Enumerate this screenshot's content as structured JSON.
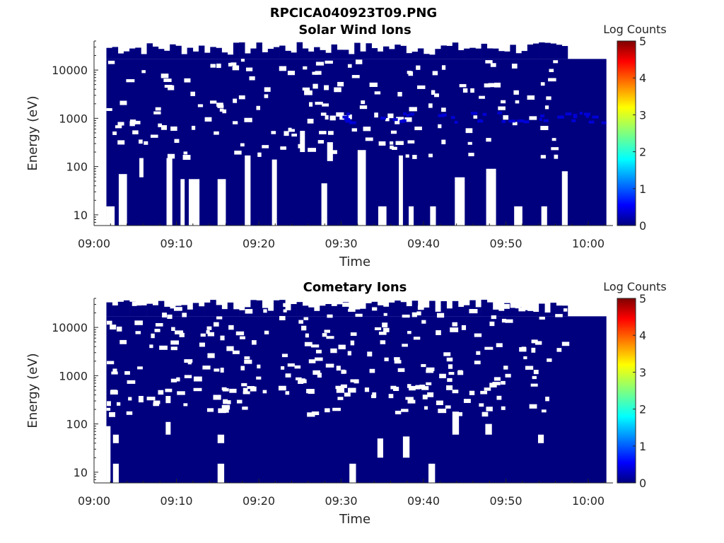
{
  "figure_title": "RPCICA040923T09.PNG",
  "colors": {
    "background": "#00007f",
    "gap": "#ffffff",
    "colormap": [
      "#00007f",
      "#0000ff",
      "#00ffff",
      "#ffff00",
      "#ff0000",
      "#7f0000"
    ]
  },
  "chart_data": [
    {
      "type": "heatmap",
      "title": "Solar Wind Ions",
      "xlabel": "Time",
      "ylabel": "Energy (eV)",
      "colorbar_label": "Log Counts",
      "colorbar_ticks": [
        "0",
        "1",
        "2",
        "3",
        "4",
        "5"
      ],
      "clim": [
        0,
        5
      ],
      "xlim_minutes": [
        0,
        63
      ],
      "ylim": [
        6,
        40000
      ],
      "yscale": "log",
      "x_ticks": [
        "09:00",
        "09:10",
        "09:20",
        "09:30",
        "09:40",
        "09:50",
        "10:00"
      ],
      "y_ticks": [
        "10",
        "100",
        "1000",
        "10000"
      ],
      "data_extent_minutes": [
        1.5,
        62.2
      ],
      "max_energy_eV": 17000,
      "typical_log_counts": 0,
      "enhanced_band": {
        "energy_eV": [
          800,
          1300
        ],
        "log_counts": 0.6
      },
      "gaps": [
        {
          "t": [
            1.5,
            2.5
          ],
          "e": [
            6,
            15
          ]
        },
        {
          "t": [
            3,
            4
          ],
          "e": [
            6,
            70
          ]
        },
        {
          "t": [
            5.5,
            6
          ],
          "e": [
            60,
            150
          ]
        },
        {
          "t": [
            8.8,
            9.5
          ],
          "e": [
            6,
            150
          ]
        },
        {
          "t": [
            10.5,
            11
          ],
          "e": [
            6,
            55
          ]
        },
        {
          "t": [
            11.5,
            12.8
          ],
          "e": [
            6,
            55
          ]
        },
        {
          "t": [
            15,
            16
          ],
          "e": [
            6,
            55
          ]
        },
        {
          "t": [
            18.3,
            19
          ],
          "e": [
            6,
            170
          ]
        },
        {
          "t": [
            21.6,
            22.2
          ],
          "e": [
            6,
            140
          ]
        },
        {
          "t": [
            25,
            25.6
          ],
          "e": [
            200,
            550
          ]
        },
        {
          "t": [
            27.6,
            28.3
          ],
          "e": [
            6,
            45
          ]
        },
        {
          "t": [
            28.3,
            29
          ],
          "e": [
            130,
            320
          ]
        },
        {
          "t": [
            32,
            33
          ],
          "e": [
            6,
            220
          ]
        },
        {
          "t": [
            34.5,
            35.5
          ],
          "e": [
            6,
            15
          ]
        },
        {
          "t": [
            37,
            37.5
          ],
          "e": [
            6,
            170
          ]
        },
        {
          "t": [
            38.2,
            38.8
          ],
          "e": [
            6,
            15
          ]
        },
        {
          "t": [
            40.8,
            41.5
          ],
          "e": [
            6,
            15
          ]
        },
        {
          "t": [
            43.8,
            45
          ],
          "e": [
            6,
            60
          ]
        },
        {
          "t": [
            47.6,
            48.8
          ],
          "e": [
            6,
            90
          ]
        },
        {
          "t": [
            51,
            52
          ],
          "e": [
            6,
            15
          ]
        },
        {
          "t": [
            54.3,
            55
          ],
          "e": [
            6,
            15
          ]
        },
        {
          "t": [
            56.8,
            57.5
          ],
          "e": [
            6,
            80
          ]
        }
      ]
    },
    {
      "type": "heatmap",
      "title": "Cometary Ions",
      "xlabel": "Time",
      "ylabel": "Energy (eV)",
      "colorbar_label": "Log Counts",
      "colorbar_ticks": [
        "0",
        "1",
        "2",
        "3",
        "4",
        "5"
      ],
      "clim": [
        0,
        5
      ],
      "xlim_minutes": [
        0,
        63
      ],
      "ylim": [
        6,
        40000
      ],
      "yscale": "log",
      "x_ticks": [
        "09:00",
        "09:10",
        "09:20",
        "09:30",
        "09:40",
        "09:50",
        "10:00"
      ],
      "y_ticks": [
        "10",
        "100",
        "1000",
        "10000"
      ],
      "data_extent_minutes": [
        1.5,
        62.2
      ],
      "max_energy_eV": 17000,
      "typical_log_counts": 0,
      "gaps": [
        {
          "t": [
            1.5,
            2
          ],
          "e": [
            6,
            90
          ]
        },
        {
          "t": [
            2.3,
            3
          ],
          "e": [
            6,
            15
          ]
        },
        {
          "t": [
            2.3,
            3
          ],
          "e": [
            40,
            60
          ]
        },
        {
          "t": [
            5.4,
            6
          ],
          "e": [
            280,
            380
          ]
        },
        {
          "t": [
            8.7,
            9.3
          ],
          "e": [
            60,
            110
          ]
        },
        {
          "t": [
            8.7,
            9.3
          ],
          "e": [
            270,
            380
          ]
        },
        {
          "t": [
            15,
            15.8
          ],
          "e": [
            6,
            15
          ]
        },
        {
          "t": [
            15,
            15.8
          ],
          "e": [
            40,
            60
          ]
        },
        {
          "t": [
            31,
            31.8
          ],
          "e": [
            6,
            15
          ]
        },
        {
          "t": [
            34.4,
            35.1
          ],
          "e": [
            20,
            50
          ]
        },
        {
          "t": [
            37.5,
            38.3
          ],
          "e": [
            20,
            55
          ]
        },
        {
          "t": [
            40.6,
            41.4
          ],
          "e": [
            6,
            15
          ]
        },
        {
          "t": [
            43.5,
            44.3
          ],
          "e": [
            60,
            180
          ]
        },
        {
          "t": [
            47.5,
            48.3
          ],
          "e": [
            60,
            100
          ]
        },
        {
          "t": [
            53.9,
            54.6
          ],
          "e": [
            40,
            60
          ]
        }
      ]
    }
  ]
}
